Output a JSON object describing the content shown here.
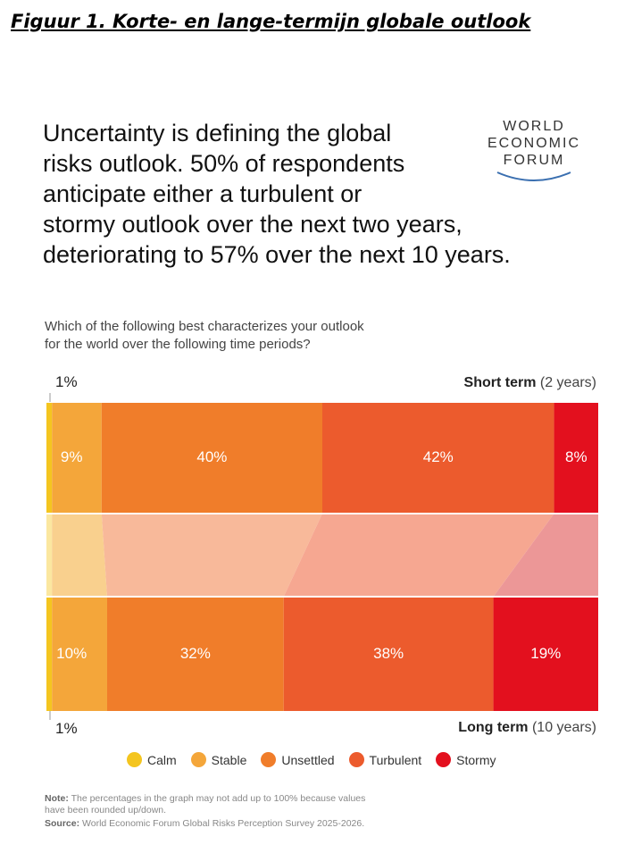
{
  "figure_title": "Figuur 1. Korte- en lange-termijn globale outlook",
  "headline_lines": [
    "Uncertainty is defining the global",
    "risks outlook. 50% of respondents",
    "anticipate either a turbulent or",
    "stormy outlook over the next two years,",
    "deteriorating to 57% over the next 10 years."
  ],
  "logo_lines": [
    "WORLD",
    "ECONOMIC",
    "FORUM"
  ],
  "question_lines": [
    "Which of the following best characterizes your outlook",
    "for the world over the following time periods?"
  ],
  "short_term": {
    "label_bold": "Short term",
    "label_paren": "(2 years)"
  },
  "long_term": {
    "label_bold": "Long term",
    "label_paren": "(10 years)"
  },
  "note": {
    "line1_bold": "Note:",
    "line1_rest": " The percentages in the graph may not add up to 100% because values",
    "line2": "have been rounded up/down.",
    "source_bold": "Source:",
    "source_rest": " World Economic Forum Global Risks Perception Survey 2025-2026."
  },
  "chart_data": {
    "type": "bar",
    "orientation": "horizontal-stacked-100",
    "title": "Which of the following best characterizes your outlook for the world over the following time periods?",
    "categories": [
      "Calm",
      "Stable",
      "Unsettled",
      "Turbulent",
      "Stormy"
    ],
    "colors": {
      "Calm": "#f4c51f",
      "Stable": "#f4a63a",
      "Unsettled": "#f07d2a",
      "Turbulent": "#ec5b2d",
      "Stormy": "#e3101e"
    },
    "series": [
      {
        "name": "Short term (2 years)",
        "values": [
          1,
          9,
          40,
          42,
          8
        ],
        "labels": [
          "1%",
          "9%",
          "40%",
          "42%",
          "8%"
        ]
      },
      {
        "name": "Long term (10 years)",
        "values": [
          1,
          10,
          32,
          38,
          19
        ],
        "labels": [
          "1%",
          "10%",
          "32%",
          "38%",
          "19%"
        ]
      }
    ],
    "legend": [
      "Calm",
      "Stable",
      "Unsettled",
      "Turbulent",
      "Stormy"
    ],
    "legend_position": "bottom"
  }
}
